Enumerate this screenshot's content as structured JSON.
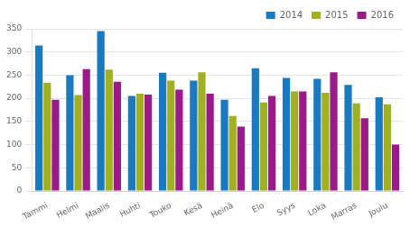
{
  "chart_data": {
    "type": "bar",
    "categories": [
      "Tammi",
      "Helmi",
      "Maalis",
      "Huhti",
      "Touko",
      "Kesä",
      "Heinä",
      "Elo",
      "Syys",
      "Loka",
      "Marras",
      "Joulu"
    ],
    "series": [
      {
        "name": "2014",
        "color": "#1a7abf",
        "values": [
          314,
          250,
          345,
          205,
          255,
          238,
          197,
          265,
          244,
          242,
          229,
          202
        ]
      },
      {
        "name": "2015",
        "color": "#a0b020",
        "values": [
          234,
          207,
          262,
          210,
          238,
          256,
          162,
          191,
          215,
          212,
          189,
          187
        ]
      },
      {
        "name": "2016",
        "color": "#9b1a8a",
        "values": [
          197,
          263,
          236,
          208,
          219,
          210,
          139,
          205,
          215,
          256,
          157,
          100
        ]
      }
    ],
    "ylim": [
      0,
      350
    ],
    "yticks": [
      0,
      50,
      100,
      150,
      200,
      250,
      300,
      350
    ],
    "grid": true,
    "legend": "upper right"
  }
}
